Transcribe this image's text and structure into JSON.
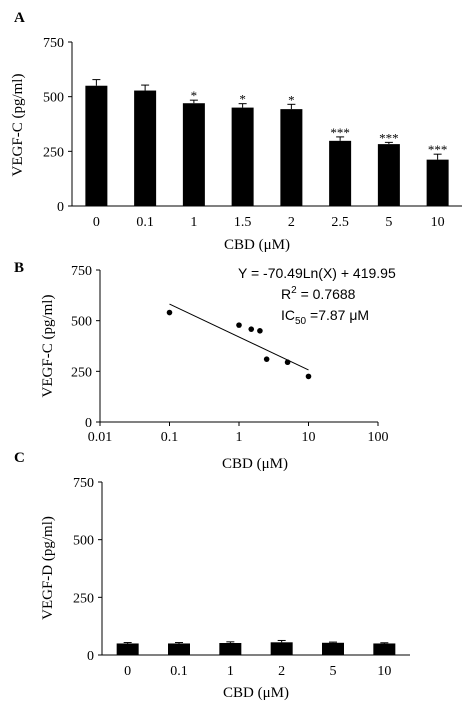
{
  "chart_data": [
    {
      "panel": "A",
      "type": "bar",
      "categories": [
        "0",
        "0.1",
        "1",
        "1.5",
        "2",
        "2.5",
        "5",
        "10"
      ],
      "values": [
        550,
        528,
        470,
        450,
        443,
        298,
        283,
        212
      ],
      "errors": [
        28,
        25,
        14,
        18,
        22,
        18,
        8,
        25
      ],
      "significance": [
        "",
        "",
        "*",
        "*",
        "*",
        "***",
        "***",
        "***"
      ],
      "xlabel": "CBD (μM)",
      "ylabel": "VEGF-C (pg/ml)",
      "ylim": [
        0,
        750
      ],
      "yticks": [
        "0",
        "250",
        "500",
        "750"
      ],
      "grid": false,
      "bar_color": "#000000"
    },
    {
      "panel": "B",
      "type": "scatter",
      "x": [
        0.1,
        1,
        1.5,
        2,
        2.5,
        5,
        10
      ],
      "y": [
        540,
        478,
        458,
        450,
        310,
        295,
        225
      ],
      "fit_line": {
        "x": [
          0.1,
          10
        ],
        "y": [
          582,
          257
        ]
      },
      "xscale": "log",
      "xticks": [
        "0.01",
        "0.1",
        "1",
        "10",
        "100"
      ],
      "yticks": [
        "0",
        "250",
        "500",
        "750"
      ],
      "ylim": [
        0,
        750
      ],
      "xlabel": "CBD (μM)",
      "ylabel": "VEGF-C (pg/ml)",
      "annotation": {
        "equation": "Y = -70.49Ln(X) + 419.95",
        "r2_prefix": "R",
        "r2_sup": "2",
        "r2_value": " = 0.7688",
        "ic_prefix": "IC",
        "ic_sub": "50",
        "ic_value": " =7.87 μM"
      },
      "grid": false
    },
    {
      "panel": "C",
      "type": "bar",
      "categories": [
        "0",
        "0.1",
        "1",
        "2",
        "5",
        "10"
      ],
      "values": [
        50,
        50,
        52,
        55,
        53,
        50
      ],
      "errors": [
        4,
        4,
        5,
        8,
        3,
        3
      ],
      "xlabel": "CBD (μM)",
      "ylabel": "VEGF-D (pg/ml)",
      "ylim": [
        0,
        750
      ],
      "yticks": [
        "0",
        "250",
        "500",
        "750"
      ],
      "grid": false,
      "bar_color": "#000000"
    }
  ]
}
